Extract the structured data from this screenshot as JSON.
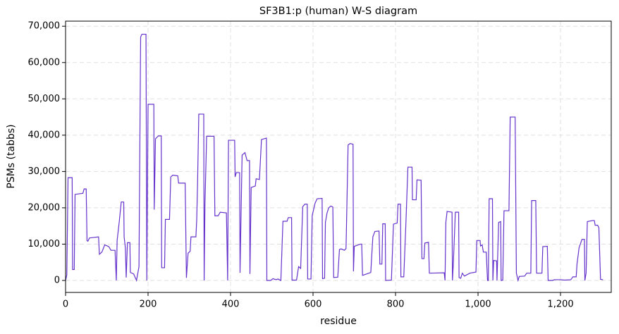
{
  "chart_data": {
    "type": "line",
    "title": "SF3B1:p (human) W-S diagram",
    "xlabel": "residue",
    "ylabel": "PSMs (tabbs)",
    "color": "#6633cc",
    "grid": true,
    "xlim": [
      0,
      1323
    ],
    "ylim": [
      -3300,
      71400
    ],
    "xticks": [
      0,
      200,
      400,
      600,
      800,
      {
        "value": 1000,
        "label": "1,000"
      },
      {
        "value": 1200,
        "label": "1,200"
      }
    ],
    "yticks": [
      0,
      {
        "value": 10000,
        "label": "10,000"
      },
      {
        "value": 20000,
        "label": "20,000"
      },
      {
        "value": 30000,
        "label": "30,000"
      },
      {
        "value": 40000,
        "label": "40,000"
      },
      {
        "value": 50000,
        "label": "50,000"
      },
      {
        "value": 60000,
        "label": "60,000"
      },
      {
        "value": 70000,
        "label": "70,000"
      }
    ],
    "x": [
      0,
      3,
      6,
      16,
      17,
      21,
      23,
      42,
      45,
      50,
      52,
      54,
      58,
      80,
      82,
      88,
      95,
      105,
      110,
      120,
      123,
      125,
      130,
      135,
      141,
      142,
      145,
      147,
      150,
      156,
      157,
      165,
      172,
      178,
      182,
      185,
      195,
      197,
      200,
      214,
      215,
      218,
      225,
      232,
      233,
      240,
      242,
      252,
      255,
      260,
      272,
      274,
      290,
      293,
      297,
      302,
      304,
      316,
      318,
      320,
      323,
      335,
      336,
      338,
      342,
      360,
      362,
      370,
      375,
      390,
      393,
      395,
      410,
      411,
      414,
      422,
      423,
      428,
      435,
      440,
      446,
      447,
      450,
      460,
      462,
      470,
      475,
      487,
      488,
      497,
      503,
      510,
      515,
      522,
      527,
      537,
      540,
      548,
      549,
      560,
      565,
      570,
      575,
      580,
      586,
      587,
      595,
      598,
      605,
      610,
      622,
      623,
      628,
      630,
      634,
      638,
      643,
      648,
      650,
      660,
      664,
      668,
      676,
      680,
      685,
      690,
      697,
      698,
      700,
      715,
      718,
      720,
      740,
      745,
      750,
      760,
      762,
      767,
      769,
      775,
      776,
      790,
      795,
      804,
      806,
      812,
      813,
      820,
      825,
      830,
      840,
      841,
      850,
      852,
      862,
      864,
      869,
      871,
      880,
      882,
      918,
      920,
      922,
      925,
      937,
      938,
      940,
      945,
      953,
      954,
      958,
      962,
      967,
      980,
      995,
      997,
      1005,
      1006,
      1010,
      1013,
      1020,
      1023,
      1025,
      1027,
      1035,
      1036,
      1038,
      1045,
      1046,
      1050,
      1055,
      1056,
      1060,
      1063,
      1075,
      1078,
      1090,
      1093,
      1097,
      1100,
      1113,
      1118,
      1128,
      1130,
      1140,
      1142,
      1155,
      1157,
      1168,
      1170,
      1180,
      1185,
      1200,
      1210,
      1225,
      1230,
      1238,
      1240,
      1245,
      1252,
      1258,
      1259,
      1262,
      1265,
      1278,
      1282,
      1284,
      1290,
      1293,
      1297,
      1303
    ],
    "values": [
      0,
      1500,
      28300,
      28300,
      3000,
      3000,
      23700,
      24000,
      25200,
      25200,
      11000,
      10800,
      11700,
      12000,
      7200,
      7800,
      9800,
      9300,
      8300,
      8300,
      0,
      11000,
      16000,
      21600,
      21600,
      12000,
      9000,
      800,
      10400,
      10400,
      2200,
      1800,
      0,
      3800,
      67000,
      67800,
      67800,
      0,
      48500,
      48500,
      19500,
      39000,
      39800,
      39800,
      3500,
      3500,
      16800,
      16800,
      28500,
      29000,
      28800,
      26800,
      26800,
      700,
      7500,
      8000,
      12000,
      12000,
      16700,
      26500,
      45800,
      45800,
      0,
      21000,
      39700,
      39700,
      17800,
      17800,
      18800,
      18600,
      0,
      38600,
      38600,
      28500,
      29700,
      29700,
      2100,
      34500,
      35200,
      33000,
      33000,
      1800,
      25600,
      26000,
      28000,
      27800,
      38800,
      39200,
      0,
      0,
      500,
      200,
      400,
      0,
      16300,
      16300,
      17300,
      17300,
      100,
      100,
      3800,
      3300,
      20300,
      21000,
      21000,
      400,
      400,
      17900,
      21300,
      22500,
      22600,
      500,
      600,
      16000,
      18600,
      20000,
      20500,
      20200,
      800,
      900,
      8500,
      8700,
      8300,
      8800,
      37300,
      37700,
      37500,
      2500,
      9400,
      10000,
      10000,
      1400,
      2200,
      12000,
      13500,
      13600,
      4500,
      4500,
      15600,
      15600,
      0,
      100,
      15500,
      15800,
      21000,
      21000,
      1000,
      1000,
      15300,
      31200,
      31200,
      22200,
      22200,
      27700,
      27600,
      6000,
      6000,
      10300,
      10500,
      2000,
      2100,
      0,
      16000,
      19000,
      18800,
      0,
      4200,
      18800,
      18800,
      800,
      600,
      2000,
      1200,
      2000,
      2300,
      11000,
      11000,
      9500,
      9800,
      7800,
      7800,
      0,
      0,
      22500,
      22500,
      0,
      5500,
      5400,
      0,
      16000,
      16200,
      0,
      100,
      19200,
      19200,
      45000,
      45000,
      2000,
      0,
      1100,
      1200,
      2000,
      2000,
      22000,
      22000,
      2000,
      2000,
      9300,
      9400,
      0,
      0,
      200,
      200,
      100,
      200,
      1000,
      1000,
      4500,
      9000,
      11300,
      11300,
      0,
      2000,
      16200,
      16500,
      16500,
      15200,
      15200,
      14500,
      300,
      200
    ]
  }
}
